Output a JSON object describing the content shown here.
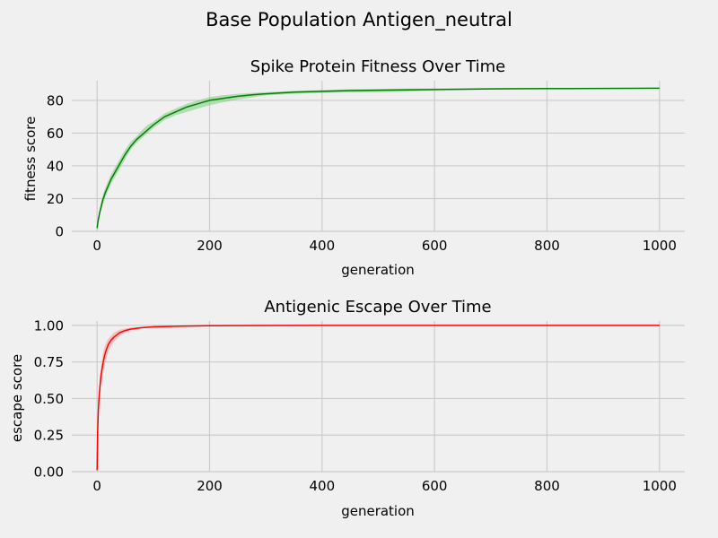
{
  "figure": {
    "suptitle": "Base Population Antigen_neutral"
  },
  "chart_data": [
    {
      "type": "line",
      "title": "Spike Protein Fitness Over Time",
      "xlabel": "generation",
      "ylabel": "fitness score",
      "xlim": [
        -45,
        1045
      ],
      "ylim": [
        0,
        92
      ],
      "xticks": [
        0,
        200,
        400,
        600,
        800,
        1000
      ],
      "yticks": [
        0,
        20,
        40,
        60,
        80
      ],
      "ytick_labels": [
        "0",
        "20",
        "40",
        "60",
        "80"
      ],
      "grid": true,
      "series": [
        {
          "color": "#008000",
          "band_color": "#7fcc7f",
          "x": [
            0,
            2,
            5,
            10,
            15,
            20,
            25,
            30,
            40,
            50,
            60,
            70,
            80,
            90,
            100,
            120,
            140,
            160,
            180,
            200,
            220,
            250,
            280,
            300,
            350,
            400,
            450,
            500,
            550,
            600,
            700,
            800,
            900,
            1000
          ],
          "y": [
            2,
            7,
            12,
            19,
            24,
            28,
            32,
            35,
            41,
            47,
            52,
            56,
            59,
            62,
            65,
            70,
            73,
            76,
            78,
            80,
            81,
            82.5,
            83.5,
            84,
            85,
            85.5,
            86,
            86.2,
            86.4,
            86.6,
            87,
            87.2,
            87.3,
            87.4
          ],
          "lower": [
            1,
            5,
            10,
            16,
            21,
            25,
            29,
            32,
            38,
            44,
            50,
            54,
            57,
            60,
            63,
            68,
            71,
            73,
            75,
            77,
            78.5,
            80.5,
            82,
            83,
            84,
            84.5,
            84.8,
            85,
            85.2,
            86.2,
            86.6,
            87,
            87.2,
            87.3
          ],
          "upper": [
            3,
            9,
            14,
            22,
            27,
            31,
            35,
            38,
            44,
            50,
            55,
            58,
            62,
            65,
            67,
            72,
            75,
            78,
            80,
            82,
            83,
            84,
            84.7,
            85,
            85.8,
            86.3,
            86.8,
            87,
            87.2,
            87.3,
            87.5,
            87.6,
            87.6,
            87.6
          ]
        }
      ]
    },
    {
      "type": "line",
      "title": "Antigenic Escape Over Time",
      "xlabel": "generation",
      "ylabel": "escape score",
      "xlim": [
        -45,
        1045
      ],
      "ylim": [
        0,
        1.03
      ],
      "xticks": [
        0,
        200,
        400,
        600,
        800,
        1000
      ],
      "yticks": [
        0,
        0.25,
        0.5,
        0.75,
        1.0
      ],
      "ytick_labels": [
        "0.00",
        "0.25",
        "0.50",
        "0.75",
        "1.00"
      ],
      "grid": true,
      "series": [
        {
          "color": "#ff0000",
          "band_color": "#ff9a9a",
          "x": [
            0,
            1,
            2,
            3,
            5,
            7,
            10,
            13,
            16,
            20,
            25,
            30,
            40,
            50,
            60,
            80,
            100,
            150,
            200,
            300,
            400,
            600,
            800,
            1000
          ],
          "y": [
            0.01,
            0.28,
            0.4,
            0.48,
            0.58,
            0.66,
            0.73,
            0.79,
            0.83,
            0.87,
            0.9,
            0.92,
            0.95,
            0.965,
            0.975,
            0.985,
            0.99,
            0.995,
            0.998,
            0.999,
            1.0,
            1.0,
            1.0,
            1.0
          ],
          "lower": [
            0.01,
            0.24,
            0.34,
            0.42,
            0.52,
            0.59,
            0.66,
            0.72,
            0.77,
            0.82,
            0.86,
            0.89,
            0.93,
            0.95,
            0.965,
            0.98,
            0.985,
            0.993,
            0.997,
            0.999,
            1.0,
            1.0,
            1.0,
            1.0
          ],
          "upper": [
            0.02,
            0.32,
            0.45,
            0.54,
            0.64,
            0.72,
            0.8,
            0.85,
            0.88,
            0.91,
            0.93,
            0.95,
            0.97,
            0.98,
            0.985,
            0.99,
            0.995,
            0.998,
            0.999,
            1.0,
            1.0,
            1.0,
            1.0,
            1.0
          ]
        }
      ]
    }
  ]
}
